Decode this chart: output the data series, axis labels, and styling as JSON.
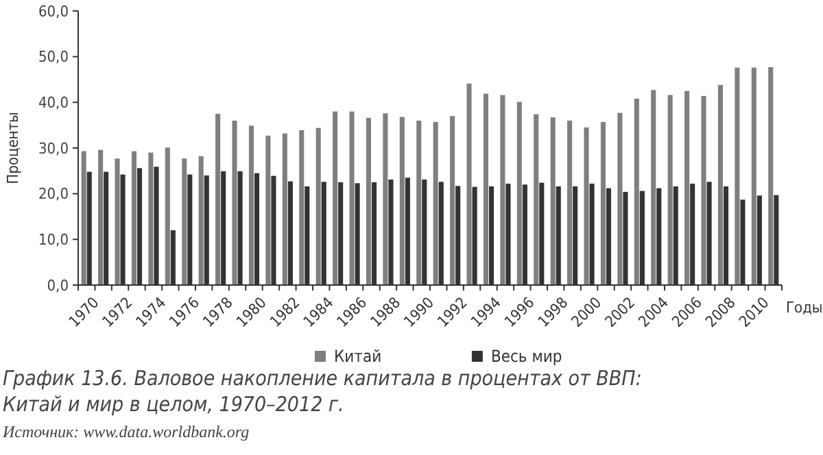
{
  "chart_data": {
    "type": "bar",
    "title": "График 13.6. Валовое накопление капитала в процентах от ВВП: Китай и мир в целом, 1970–2012 г.",
    "xlabel": "Годы",
    "ylabel": "Проценты",
    "annotations": [
      "Источник: www.data.worldbank.org"
    ],
    "categories": [
      "1970",
      null,
      "1972",
      null,
      "1974",
      null,
      "1976",
      null,
      "1978",
      null,
      "1980",
      null,
      "1982",
      null,
      "1984",
      null,
      "1986",
      null,
      "1988",
      null,
      "1990",
      null,
      "1992",
      null,
      "1994",
      null,
      "1996",
      null,
      "1998",
      null,
      "2000",
      null,
      "2002",
      null,
      "2004",
      null,
      "2006",
      null,
      "2008",
      null,
      "2010",
      null
    ],
    "series": [
      {
        "name": "Китай",
        "color": "#7f7f7f",
        "values": [
          29.3,
          29.6,
          27.7,
          29.3,
          29.0,
          30.1,
          27.7,
          28.2,
          37.5,
          36.0,
          34.9,
          32.7,
          33.2,
          33.9,
          34.4,
          38.0,
          38.0,
          36.6,
          37.6,
          36.8,
          36.0,
          35.7,
          37.0,
          44.1,
          41.9,
          41.6,
          40.1,
          37.4,
          36.7,
          36.0,
          34.5,
          35.7,
          37.7,
          40.8,
          42.7,
          41.6,
          42.5,
          41.4,
          43.8,
          47.6,
          47.6,
          47.7
        ]
      },
      {
        "name": "Весь мир",
        "color": "#333333",
        "values": [
          24.8,
          24.8,
          24.2,
          25.6,
          25.9,
          12.0,
          24.2,
          24.0,
          24.9,
          24.9,
          24.5,
          23.9,
          22.7,
          21.6,
          22.6,
          22.5,
          22.3,
          22.5,
          23.1,
          23.5,
          23.1,
          22.6,
          21.7,
          21.5,
          21.6,
          22.2,
          22.0,
          22.4,
          21.6,
          21.6,
          22.2,
          21.2,
          20.4,
          20.6,
          21.2,
          21.6,
          22.2,
          22.6,
          21.6,
          18.7,
          19.6,
          19.7
        ]
      }
    ],
    "ylim": [
      0,
      60
    ],
    "yticks": [
      {
        "value": 0,
        "label": "0,0"
      },
      {
        "value": 10,
        "label": "10,0"
      },
      {
        "value": 20,
        "label": "20,0"
      },
      {
        "value": 30,
        "label": "30,0"
      },
      {
        "value": 40,
        "label": "40,0"
      },
      {
        "value": 50,
        "label": "50,0"
      },
      {
        "value": 60,
        "label": "60,0"
      }
    ],
    "legend": "bottom"
  }
}
